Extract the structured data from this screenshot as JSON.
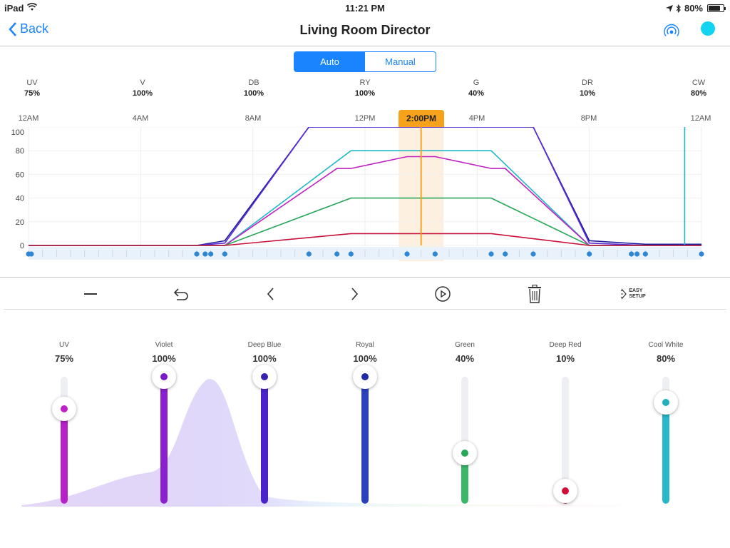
{
  "status_bar": {
    "device": "iPad",
    "time": "11:21 PM",
    "battery": "80%",
    "battery_level": 0.8
  },
  "nav": {
    "back_label": "Back",
    "title": "Living Room Director",
    "status_color": "#10d4f0"
  },
  "mode": {
    "auto_label": "Auto",
    "manual_label": "Manual",
    "selected": "Auto"
  },
  "channels": [
    {
      "abbr": "UV",
      "value": "75%"
    },
    {
      "abbr": "V",
      "value": "100%"
    },
    {
      "abbr": "DB",
      "value": "100%"
    },
    {
      "abbr": "RY",
      "value": "100%"
    },
    {
      "abbr": "G",
      "value": "40%"
    },
    {
      "abbr": "DR",
      "value": "10%"
    },
    {
      "abbr": "CW",
      "value": "80%"
    }
  ],
  "time_labels": [
    "12AM",
    "4AM",
    "8AM",
    "12PM",
    "4PM",
    "8PM",
    "12AM"
  ],
  "current_time": "2:00PM",
  "chart_data": {
    "type": "line",
    "x_unit": "hours",
    "xlim": [
      0,
      24
    ],
    "ylim": [
      0,
      100
    ],
    "y_ticks": [
      0,
      20,
      40,
      60,
      80,
      100
    ],
    "current_hour": 14.0,
    "highlight_window": [
      13.2,
      14.8
    ],
    "series": [
      {
        "color": "#1a1a9a",
        "points": [
          [
            0,
            0
          ],
          [
            6,
            0
          ],
          [
            7,
            4
          ],
          [
            10,
            100
          ],
          [
            18,
            100
          ],
          [
            20,
            4
          ],
          [
            22,
            1
          ],
          [
            24,
            1
          ]
        ]
      },
      {
        "color": "#5b2bd8",
        "points": [
          [
            0,
            0
          ],
          [
            6,
            0
          ],
          [
            7,
            2
          ],
          [
            10,
            100
          ],
          [
            18,
            100
          ],
          [
            20,
            2
          ],
          [
            22,
            0
          ],
          [
            24,
            0
          ]
        ]
      },
      {
        "color": "#20b8c8",
        "points": [
          [
            0,
            0
          ],
          [
            7,
            0
          ],
          [
            11.5,
            80
          ],
          [
            16.5,
            80
          ],
          [
            20,
            0
          ],
          [
            23.4,
            0
          ],
          [
            23.4,
            100
          ],
          [
            23.4,
            0
          ],
          [
            24,
            0
          ]
        ]
      },
      {
        "color": "#c020c0",
        "points": [
          [
            0,
            0
          ],
          [
            7,
            0
          ],
          [
            11,
            65
          ],
          [
            11.5,
            65
          ],
          [
            13.5,
            75
          ],
          [
            14.5,
            75
          ],
          [
            16.5,
            65
          ],
          [
            17,
            65
          ],
          [
            20,
            0
          ],
          [
            24,
            0
          ]
        ]
      },
      {
        "color": "#28a85a",
        "points": [
          [
            0,
            0
          ],
          [
            7,
            0
          ],
          [
            11.5,
            40
          ],
          [
            16.5,
            40
          ],
          [
            20,
            0
          ],
          [
            24,
            0
          ]
        ]
      },
      {
        "color": "#c8103a",
        "points": [
          [
            0,
            0
          ],
          [
            7,
            0
          ],
          [
            11.5,
            10
          ],
          [
            16.5,
            10
          ],
          [
            20,
            0
          ],
          [
            24,
            0
          ]
        ]
      }
    ],
    "keyframes": [
      0,
      0.1,
      6,
      6.3,
      6.5,
      7,
      10,
      11,
      11.5,
      13.5,
      14.5,
      16.5,
      17,
      18,
      20,
      21.5,
      21.7,
      22,
      24
    ]
  },
  "toolbar": [
    {
      "name": "minus-icon"
    },
    {
      "name": "undo-icon"
    },
    {
      "name": "chevron-left-icon"
    },
    {
      "name": "chevron-right-icon"
    },
    {
      "name": "play-icon"
    },
    {
      "name": "trash-icon"
    },
    {
      "name": "easy-setup-icon",
      "label1": "EASY",
      "label2": "SETUP"
    }
  ],
  "sliders": [
    {
      "name": "UV",
      "value": "75%",
      "level": 0.75,
      "color": "#b820c8",
      "dot": "#c020c8"
    },
    {
      "name": "Violet",
      "value": "100%",
      "level": 1.0,
      "color": "#8a20d0",
      "dot": "#7a1ac8"
    },
    {
      "name": "Deep Blue",
      "value": "100%",
      "level": 1.0,
      "color": "#4a24c8",
      "dot": "#3a20b0"
    },
    {
      "name": "Royal",
      "value": "100%",
      "level": 1.0,
      "color": "#2a40c0",
      "dot": "#1e2aa8"
    },
    {
      "name": "Green",
      "value": "40%",
      "level": 0.4,
      "color": "#3ab868",
      "dot": "#28a858"
    },
    {
      "name": "Deep Red",
      "value": "10%",
      "level": 0.1,
      "color": "#d01848",
      "dot": "#d0103a"
    },
    {
      "name": "Cool White",
      "value": "80%",
      "level": 0.8,
      "color": "#28b8c8",
      "dot": "#20b0c0"
    }
  ]
}
